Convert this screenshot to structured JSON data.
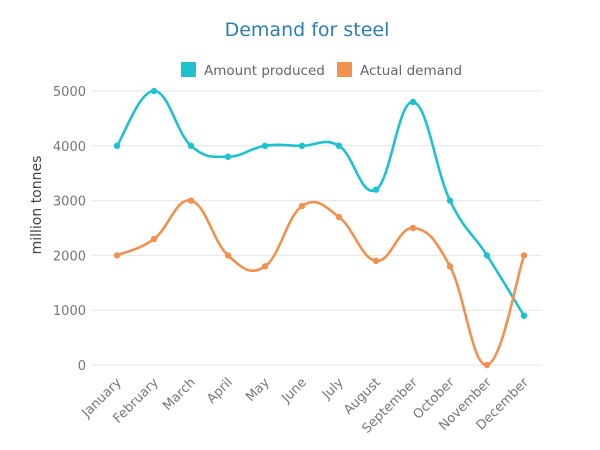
{
  "chart_data": {
    "type": "line",
    "title": "Demand for steel",
    "xlabel": "",
    "ylabel": "million tonnes",
    "categories": [
      "January",
      "February",
      "March",
      "April",
      "May",
      "June",
      "July",
      "August",
      "September",
      "October",
      "November",
      "December"
    ],
    "ylim": [
      0,
      5000
    ],
    "yticks": [
      0,
      1000,
      2000,
      3000,
      4000,
      5000
    ],
    "grid": true,
    "legend_position": "top",
    "series": [
      {
        "name": "Amount produced",
        "color": "#1fc1d1",
        "values": [
          4000,
          5000,
          4000,
          3800,
          4000,
          4000,
          4000,
          3200,
          4800,
          3000,
          2000,
          900
        ]
      },
      {
        "name": "Actual demand",
        "color": "#f2904f",
        "values": [
          2000,
          2300,
          3000,
          2000,
          1800,
          2900,
          2700,
          1900,
          2500,
          1800,
          0,
          2000
        ]
      }
    ]
  }
}
